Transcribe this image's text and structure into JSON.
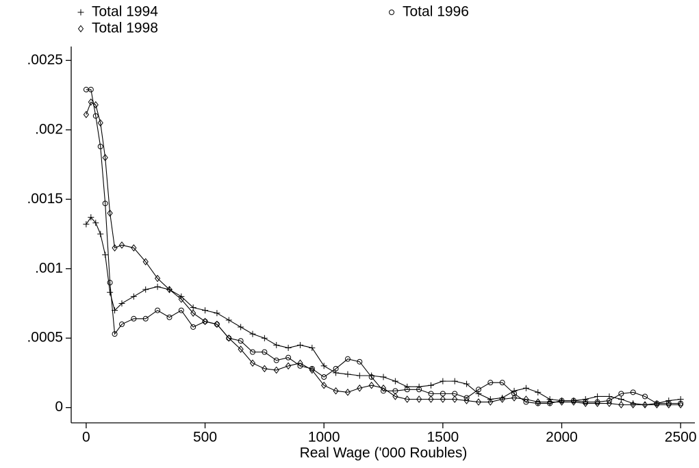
{
  "chart_data": {
    "type": "line",
    "x_label": "Real Wage ('000 Roubles)",
    "x": [
      0,
      20,
      40,
      60,
      80,
      100,
      120,
      150,
      200,
      250,
      300,
      350,
      400,
      450,
      500,
      550,
      600,
      650,
      700,
      750,
      800,
      850,
      900,
      950,
      1000,
      1050,
      1100,
      1150,
      1200,
      1250,
      1300,
      1350,
      1400,
      1450,
      1500,
      1550,
      1600,
      1650,
      1700,
      1750,
      1800,
      1850,
      1900,
      1950,
      2000,
      2050,
      2100,
      2150,
      2200,
      2250,
      2300,
      2350,
      2400,
      2450,
      2500
    ],
    "series": [
      {
        "name": "Total 1994",
        "color": "#000000",
        "marker": "plus",
        "values": [
          0.00132,
          0.00137,
          0.00133,
          0.00125,
          0.0011,
          0.00083,
          0.0007,
          0.00075,
          0.0008,
          0.00085,
          0.00087,
          0.00085,
          0.0008,
          0.00072,
          0.0007,
          0.00068,
          0.00063,
          0.00058,
          0.00053,
          0.0005,
          0.00045,
          0.00043,
          0.00045,
          0.00043,
          0.0003,
          0.00025,
          0.00024,
          0.00023,
          0.00023,
          0.00022,
          0.00019,
          0.00015,
          0.00015,
          0.00016,
          0.00019,
          0.00019,
          0.00017,
          0.0001,
          6e-05,
          7e-05,
          0.00012,
          0.00014,
          0.00011,
          6e-05,
          5e-05,
          5e-05,
          6e-05,
          8e-05,
          8e-05,
          6e-05,
          3e-05,
          2e-05,
          3e-05,
          5e-05,
          6e-05
        ]
      },
      {
        "name": "Total 1996",
        "color": "#000000",
        "marker": "circle",
        "values": [
          0.00229,
          0.00229,
          0.0021,
          0.00188,
          0.00147,
          0.0009,
          0.00053,
          0.0006,
          0.00064,
          0.00064,
          0.0007,
          0.00065,
          0.0007,
          0.00058,
          0.00062,
          0.0006,
          0.0005,
          0.00048,
          0.0004,
          0.0004,
          0.00034,
          0.00036,
          0.0003,
          0.00028,
          0.00022,
          0.00028,
          0.00035,
          0.00033,
          0.00022,
          0.00012,
          0.00012,
          0.00013,
          0.00013,
          0.0001,
          0.0001,
          0.0001,
          7e-05,
          0.00013,
          0.00018,
          0.00018,
          0.0001,
          4e-05,
          3e-05,
          3e-05,
          5e-05,
          5e-05,
          4e-05,
          4e-05,
          5e-05,
          0.0001,
          0.00011,
          8e-05,
          3e-05,
          3e-05,
          3e-05
        ]
      },
      {
        "name": "Total 1998",
        "color": "#000000",
        "marker": "diamond",
        "values": [
          0.00211,
          0.0022,
          0.00218,
          0.00205,
          0.0018,
          0.0014,
          0.00115,
          0.00117,
          0.00115,
          0.00105,
          0.00093,
          0.00085,
          0.00078,
          0.00068,
          0.00062,
          0.0006,
          0.0005,
          0.00042,
          0.00032,
          0.00028,
          0.00027,
          0.0003,
          0.00032,
          0.00027,
          0.00016,
          0.00012,
          0.00011,
          0.00014,
          0.00016,
          0.00014,
          8e-05,
          6e-05,
          6e-05,
          6e-05,
          6e-05,
          6e-05,
          5e-05,
          4e-05,
          4e-05,
          6e-05,
          7e-05,
          6e-05,
          4e-05,
          4e-05,
          4e-05,
          4e-05,
          3e-05,
          3e-05,
          3e-05,
          2e-05,
          2e-05,
          2e-05,
          2e-05,
          2e-05,
          2e-05
        ]
      }
    ],
    "xlim": [
      -63,
      2560
    ],
    "xticks": [
      0,
      500,
      1000,
      1500,
      2000,
      2500
    ],
    "ylim": [
      -0.00011,
      0.0026
    ],
    "yticks": [
      0,
      {
        "value": 0.0005,
        "label": ".0005"
      },
      {
        "value": 0.001,
        "label": ".001"
      },
      {
        "value": 0.0015,
        "label": ".0015"
      },
      {
        "value": 0.002,
        "label": ".002"
      },
      {
        "value": 0.0025,
        "label": ".0025"
      }
    ],
    "legend": "top",
    "grid": false
  }
}
